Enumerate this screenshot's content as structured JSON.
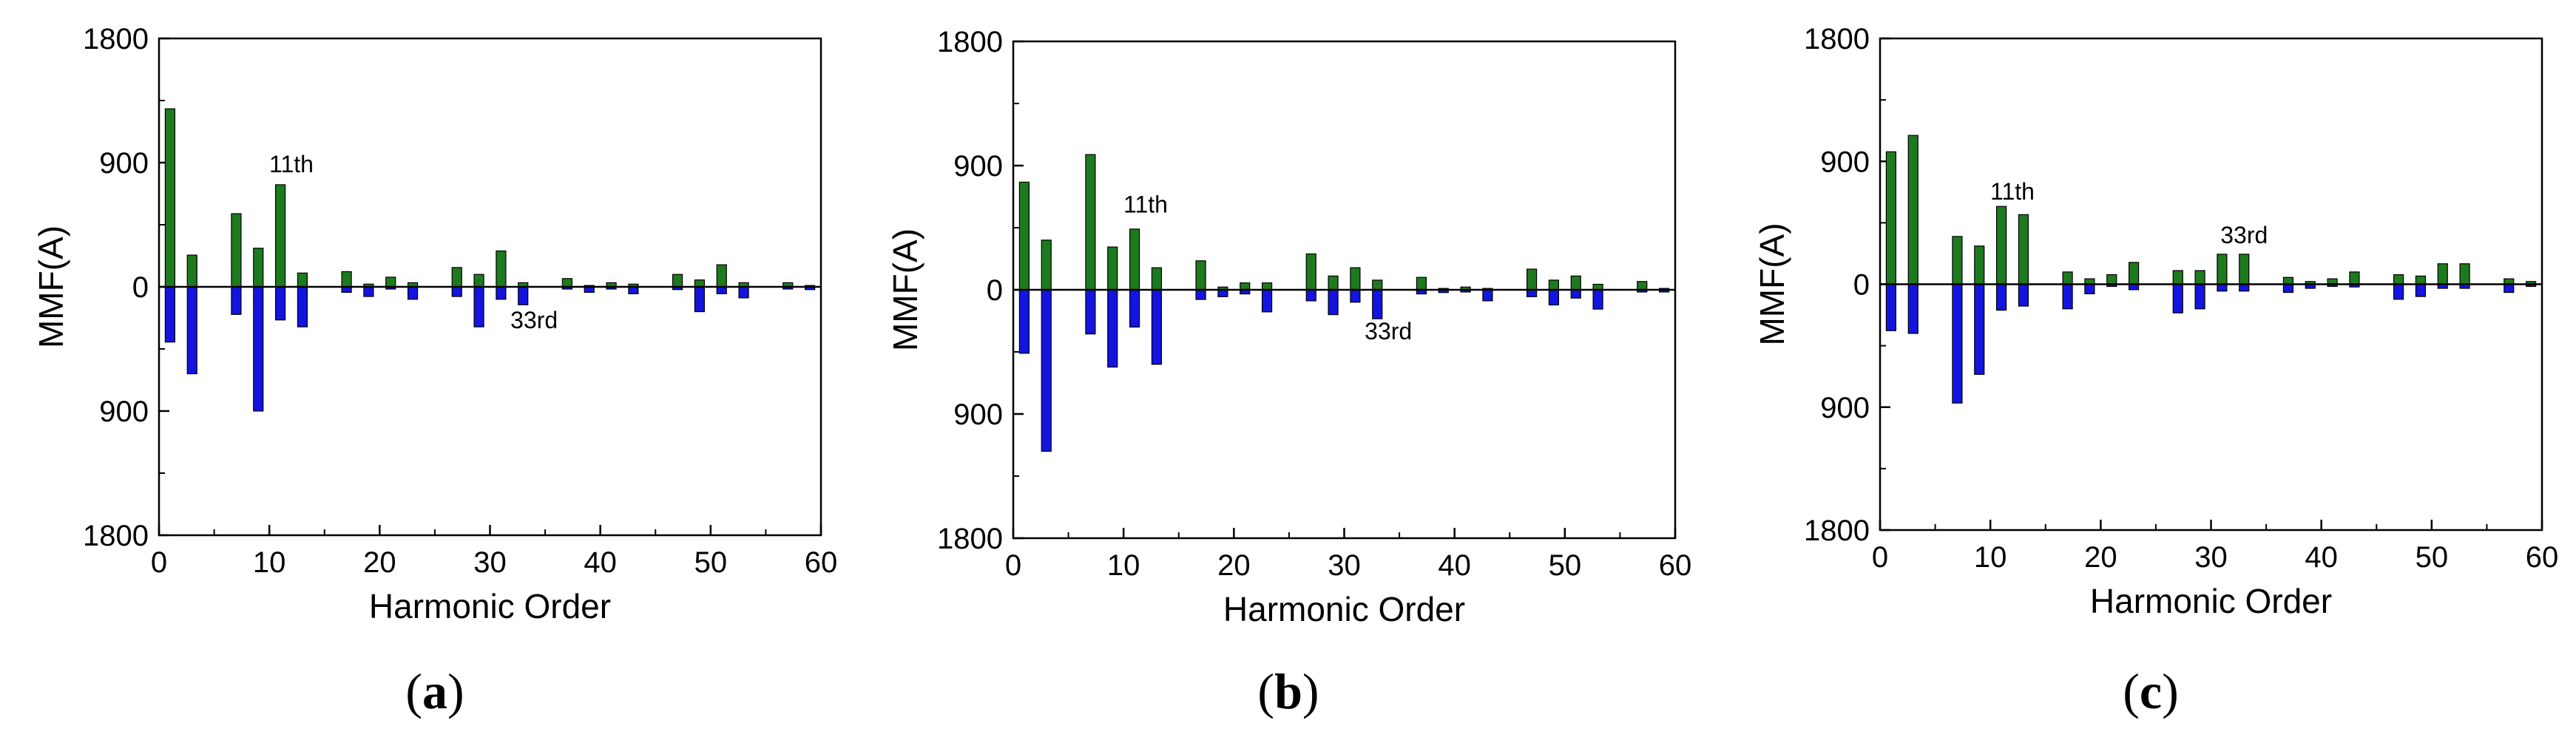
{
  "colors": {
    "positive": "#1e7a1e",
    "negative": "#1414e0",
    "axis": "#000000"
  },
  "chart_data": [
    {
      "type": "bar",
      "caption": {
        "open": "(",
        "letter": "a",
        "close": ")"
      },
      "xlabel": "Harmonic Order",
      "ylabel": "MMF(A)",
      "xlim": [
        0,
        60
      ],
      "ylim": [
        -1800,
        1800
      ],
      "xticks": [
        "0",
        "10",
        "20",
        "30",
        "40",
        "50",
        "60"
      ],
      "ytick_labels": [
        "1800",
        "900",
        "0",
        "900",
        "1800"
      ],
      "ytick_values": [
        1800,
        900,
        0,
        -900,
        -1800
      ],
      "annotations": [
        {
          "text": "11th",
          "x": 12,
          "y": 830
        },
        {
          "text": "33rd",
          "x": 34,
          "y": -300
        }
      ],
      "x": [
        1,
        3,
        7,
        9,
        11,
        13,
        17,
        19,
        21,
        23,
        27,
        29,
        31,
        33,
        37,
        39,
        41,
        43,
        47,
        49,
        51,
        53,
        57,
        59
      ],
      "series": [
        {
          "values": [
            1290,
            230,
            530,
            280,
            740,
            100,
            110,
            20,
            70,
            30,
            140,
            90,
            260,
            30,
            60,
            10,
            30,
            20,
            90,
            50,
            160,
            30,
            30,
            10
          ]
        },
        {
          "values": [
            -400,
            -630,
            -200,
            -900,
            -240,
            -290,
            -40,
            -70,
            0,
            -90,
            -70,
            -290,
            -90,
            -130,
            0,
            -40,
            0,
            -50,
            -20,
            -180,
            -50,
            -80,
            0,
            -20
          ]
        }
      ]
    },
    {
      "type": "bar",
      "caption": {
        "open": "(",
        "letter": "b",
        "close": ")"
      },
      "xlabel": "Harmonic Order",
      "ylabel": "MMF(A)",
      "xlim": [
        0,
        60
      ],
      "ylim": [
        -1800,
        1800
      ],
      "xticks": [
        "0",
        "10",
        "20",
        "30",
        "40",
        "50",
        "60"
      ],
      "ytick_labels": [
        "1800",
        "900",
        "0",
        "900",
        "1800"
      ],
      "ytick_values": [
        1800,
        900,
        0,
        -900,
        -1800
      ],
      "annotations": [
        {
          "text": "11th",
          "x": 12,
          "y": 560
        },
        {
          "text": "33rd",
          "x": 34,
          "y": -360
        }
      ],
      "x": [
        1,
        3,
        7,
        9,
        11,
        13,
        17,
        19,
        21,
        23,
        27,
        29,
        31,
        33,
        37,
        39,
        41,
        43,
        47,
        49,
        51,
        53,
        57,
        59
      ],
      "series": [
        {
          "values": [
            780,
            360,
            980,
            310,
            440,
            160,
            210,
            20,
            50,
            50,
            260,
            100,
            160,
            70,
            90,
            10,
            20,
            10,
            150,
            70,
            100,
            40,
            60,
            10
          ]
        },
        {
          "values": [
            -460,
            -1170,
            -320,
            -560,
            -270,
            -540,
            -70,
            -50,
            -30,
            -160,
            -80,
            -180,
            -90,
            -210,
            -30,
            -20,
            0,
            -80,
            -50,
            -110,
            -60,
            -140,
            0,
            0
          ]
        }
      ]
    },
    {
      "type": "bar",
      "caption": {
        "open": "(",
        "letter": "c",
        "close": ")"
      },
      "xlabel": "Harmonic Order",
      "ylabel": "MMF(A)",
      "xlim": [
        0,
        60
      ],
      "ylim": [
        -1800,
        1800
      ],
      "xticks": [
        "0",
        "10",
        "20",
        "30",
        "40",
        "50",
        "60"
      ],
      "ytick_labels": [
        "1800",
        "900",
        "0",
        "900",
        "1800"
      ],
      "ytick_values": [
        1800,
        900,
        0,
        -900,
        -1800
      ],
      "annotations": [
        {
          "text": "11th",
          "x": 12,
          "y": 620
        },
        {
          "text": "33rd",
          "x": 33,
          "y": 300
        }
      ],
      "x": [
        1,
        3,
        7,
        9,
        11,
        13,
        17,
        19,
        21,
        23,
        27,
        29,
        31,
        33,
        37,
        39,
        41,
        43,
        47,
        49,
        51,
        53,
        57,
        59
      ],
      "series": [
        {
          "values": [
            970,
            1090,
            350,
            280,
            570,
            510,
            90,
            40,
            70,
            160,
            100,
            100,
            220,
            220,
            50,
            20,
            40,
            90,
            70,
            60,
            150,
            150,
            40,
            20
          ]
        },
        {
          "values": [
            -340,
            -360,
            -870,
            -660,
            -190,
            -160,
            -180,
            -70,
            0,
            -40,
            -210,
            -180,
            -50,
            -50,
            -60,
            -30,
            0,
            -20,
            -110,
            -90,
            -30,
            -30,
            -60,
            0
          ]
        }
      ]
    }
  ]
}
